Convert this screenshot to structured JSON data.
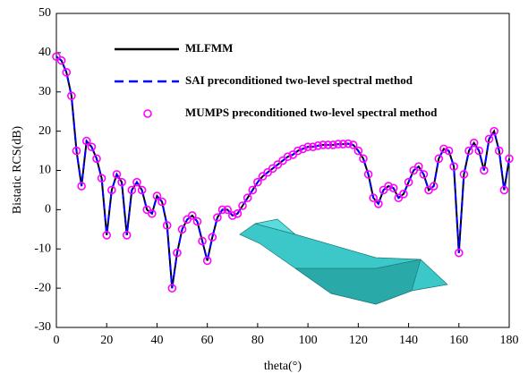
{
  "chart_data": {
    "type": "line",
    "xlabel": "theta(°)",
    "ylabel": "Bistatic RCS(dB)",
    "xlim": [
      0,
      180
    ],
    "xticks": [
      0,
      20,
      40,
      60,
      80,
      100,
      120,
      140,
      160,
      180
    ],
    "ylim": [
      -30,
      50
    ],
    "yticks": [
      -30,
      -20,
      -10,
      0,
      10,
      20,
      30,
      40,
      50
    ],
    "x": [
      0,
      2,
      4,
      6,
      8,
      10,
      12,
      14,
      16,
      18,
      20,
      22,
      24,
      26,
      28,
      30,
      32,
      34,
      36,
      38,
      40,
      42,
      44,
      46,
      48,
      50,
      52,
      54,
      56,
      58,
      60,
      62,
      64,
      66,
      68,
      70,
      72,
      74,
      76,
      78,
      80,
      82,
      84,
      86,
      88,
      90,
      92,
      94,
      96,
      98,
      100,
      102,
      104,
      106,
      108,
      110,
      112,
      114,
      116,
      118,
      120,
      122,
      124,
      126,
      128,
      130,
      132,
      134,
      136,
      138,
      140,
      142,
      144,
      146,
      148,
      150,
      152,
      154,
      156,
      158,
      160,
      162,
      164,
      166,
      168,
      170,
      172,
      174,
      176,
      178,
      180
    ],
    "series": [
      {
        "name": "MLFMM",
        "color": "#000000",
        "style": "solid",
        "values": [
          39,
          38,
          35,
          29,
          15,
          6,
          17.5,
          16,
          13,
          8,
          -6.5,
          5,
          9,
          7,
          -6.5,
          5,
          7,
          5,
          0,
          -1,
          3.5,
          2,
          -4,
          -20,
          -11,
          -5,
          -2.5,
          -1.5,
          -3,
          -8,
          -13,
          -7,
          -2,
          0,
          0,
          -1.5,
          -1,
          1,
          3,
          5,
          7,
          8.5,
          9.5,
          10.5,
          11.5,
          12.5,
          13.5,
          14,
          15,
          15.5,
          16,
          16,
          16.3,
          16.5,
          16.5,
          16.5,
          16.7,
          16.7,
          16.8,
          16.5,
          15,
          13,
          9,
          3,
          1.5,
          5,
          6,
          5.5,
          3,
          4,
          7,
          10,
          11,
          9,
          5,
          6,
          13,
          15.5,
          15,
          11,
          -11,
          9,
          15,
          17,
          15,
          10,
          18,
          20,
          15,
          5,
          13
        ]
      },
      {
        "name": "SAI preconditioned two-level spectral method",
        "color": "#0000ff",
        "style": "dashed",
        "values": [
          39,
          38,
          35,
          29,
          15,
          6,
          17.5,
          16,
          13,
          8,
          -6.5,
          5,
          9,
          7,
          -6.5,
          5,
          7,
          5,
          0,
          -1,
          3.5,
          2,
          -4,
          -20,
          -11,
          -5,
          -2.5,
          -1.5,
          -3,
          -8,
          -13,
          -7,
          -2,
          0,
          0,
          -1.5,
          -1,
          1,
          3,
          5,
          7,
          8.5,
          9.5,
          10.5,
          11.5,
          12.5,
          13.5,
          14,
          15,
          15.5,
          16,
          16,
          16.3,
          16.5,
          16.5,
          16.5,
          16.7,
          16.7,
          16.8,
          16.5,
          15,
          13,
          9,
          3,
          1.5,
          5,
          6,
          5.5,
          3,
          4,
          7,
          10,
          11,
          9,
          5,
          6,
          13,
          15.5,
          15,
          11,
          -11,
          9,
          15,
          17,
          15,
          10,
          18,
          20,
          15,
          5,
          13
        ]
      },
      {
        "name": "MUMPS preconditioned two-level spectral method",
        "color": "#ff00ff",
        "style": "circle",
        "values": [
          39,
          38,
          35,
          29,
          15,
          6,
          17.5,
          16,
          13,
          8,
          -6.5,
          5,
          9,
          7,
          -6.5,
          5,
          7,
          5,
          0,
          -1,
          3.5,
          2,
          -4,
          -20,
          -11,
          -5,
          -2.5,
          -1.5,
          -3,
          -8,
          -13,
          -7,
          -2,
          0,
          0,
          -1.5,
          -1,
          1,
          3,
          5,
          7,
          8.5,
          9.5,
          10.5,
          11.5,
          12.5,
          13.5,
          14,
          15,
          15.5,
          16,
          16,
          16.3,
          16.5,
          16.5,
          16.5,
          16.7,
          16.7,
          16.8,
          16.5,
          15,
          13,
          9,
          3,
          1.5,
          5,
          6,
          5.5,
          3,
          4,
          7,
          10,
          11,
          9,
          5,
          6,
          13,
          15.5,
          15,
          11,
          -11,
          9,
          15,
          17,
          15,
          10,
          18,
          20,
          15,
          5,
          13
        ]
      }
    ]
  }
}
